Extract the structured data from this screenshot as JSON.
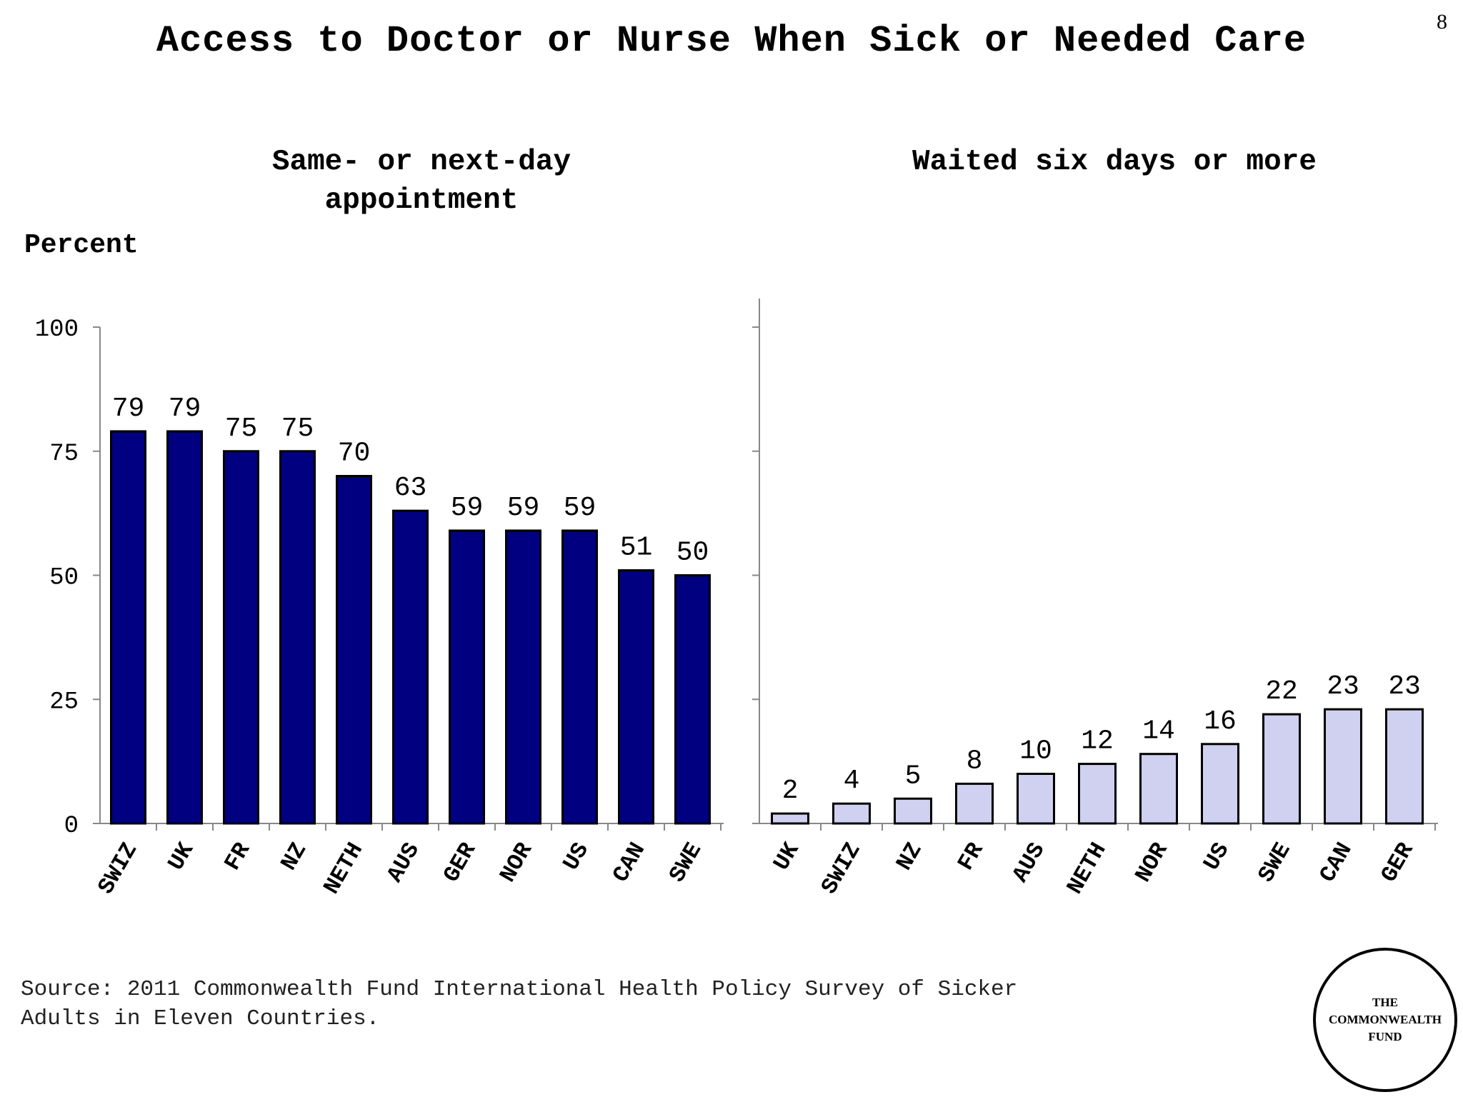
{
  "slide_number": "8",
  "title": "Access to Doctor or Nurse When Sick or Needed Care",
  "y_axis_label": "Percent",
  "source": {
    "line1": "Source: 2011 Commonwealth Fund International Health Policy Survey of Sicker",
    "line2": "Adults in Eleven Countries."
  },
  "logo": {
    "line1": "THE",
    "line2": "COMMONWEALTH",
    "line3": "FUND"
  },
  "chart_data": [
    {
      "type": "bar",
      "title_line1": "Same- or next-day",
      "title_line2": "appointment",
      "ylabel": "Percent",
      "ylim": [
        0,
        100
      ],
      "yticks": [
        0,
        25,
        50,
        75,
        100
      ],
      "categories": [
        "SWIZ",
        "UK",
        "FR",
        "NZ",
        "NETH",
        "AUS",
        "GER",
        "NOR",
        "US",
        "CAN",
        "SWE"
      ],
      "values": [
        79,
        79,
        75,
        75,
        70,
        63,
        59,
        59,
        59,
        51,
        50
      ],
      "color": "#000080",
      "grid": false
    },
    {
      "type": "bar",
      "title": "Waited six days or more",
      "ylim": [
        0,
        100
      ],
      "categories": [
        "UK",
        "SWIZ",
        "NZ",
        "FR",
        "AUS",
        "NETH",
        "NOR",
        "US",
        "SWE",
        "CAN",
        "GER"
      ],
      "values": [
        2,
        4,
        5,
        8,
        10,
        12,
        14,
        16,
        22,
        23,
        23
      ],
      "color": "#d0d0f0",
      "grid": false
    }
  ]
}
